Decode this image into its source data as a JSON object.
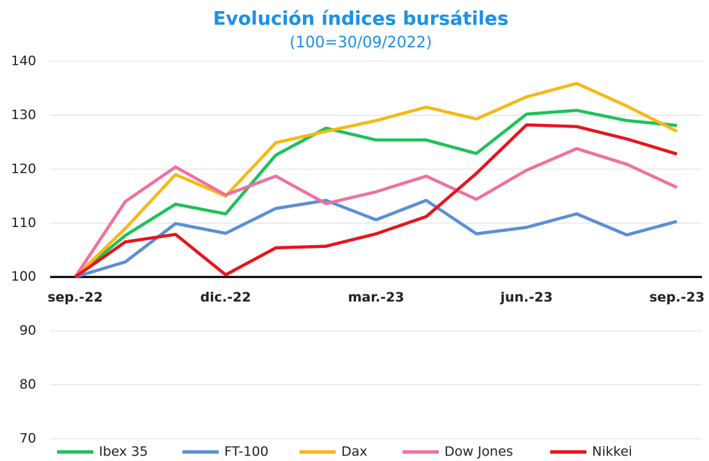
{
  "chart_data": {
    "type": "line",
    "title": "Evolución índices bursátiles",
    "subtitle": "(100=30/09/2022)",
    "categories": [
      "sep.-22",
      null,
      null,
      "dic.-22",
      null,
      null,
      "mar.-23",
      null,
      null,
      "jun.-23",
      null,
      null,
      "sep.-23"
    ],
    "series": [
      {
        "name": "Ibex 35",
        "color": "#1fc15a",
        "values": [
          100,
          107.7,
          113.5,
          111.7,
          122.6,
          127.6,
          125.4,
          125.4,
          122.9,
          130.2,
          130.9,
          129,
          128.1
        ]
      },
      {
        "name": "FT-100",
        "color": "#5b8fd6",
        "values": [
          100,
          102.8,
          109.9,
          108.1,
          112.7,
          114.2,
          110.6,
          114.2,
          108,
          109.2,
          111.7,
          107.8,
          110.3
        ]
      },
      {
        "name": "Dax",
        "color": "#f5b915",
        "values": [
          100,
          109,
          119,
          115,
          124.9,
          127,
          129,
          131.5,
          129.3,
          133.4,
          135.9,
          131.7,
          127
        ]
      },
      {
        "name": "Dow Jones",
        "color": "#f0709e",
        "values": [
          100,
          114,
          120.4,
          115.2,
          118.7,
          113.6,
          115.8,
          118.7,
          114.4,
          119.8,
          123.8,
          120.9,
          116.6
        ]
      },
      {
        "name": "Nikkei",
        "color": "#e8141c",
        "values": [
          100,
          106.5,
          107.9,
          100.4,
          105.4,
          105.7,
          108,
          111.2,
          119.2,
          128.2,
          127.9,
          125.6,
          122.8
        ]
      }
    ],
    "ylim": [
      70,
      140
    ],
    "yticks": [
      70,
      80,
      90,
      100,
      110,
      120,
      130,
      140
    ],
    "grid": true,
    "baseline": 100,
    "legend": "bottom"
  }
}
